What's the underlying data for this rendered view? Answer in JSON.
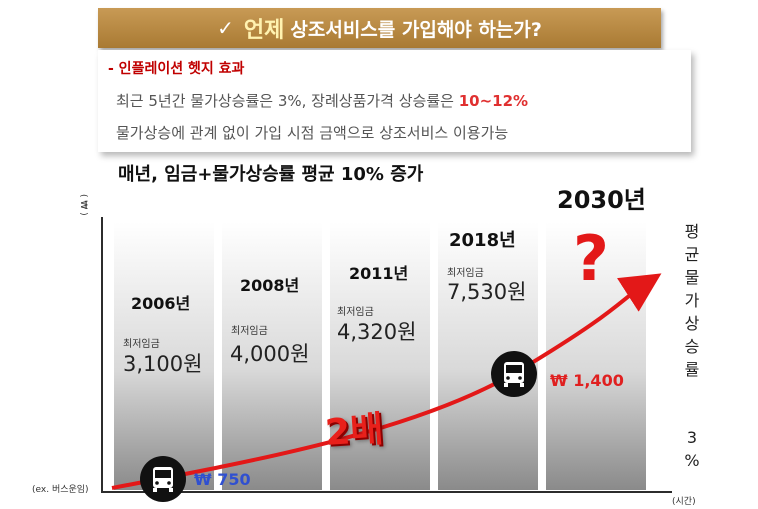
{
  "banner": {
    "check": "✓",
    "highlight": "언제",
    "text": "상조서비스를 가입해야 하는가?"
  },
  "info": {
    "heading": "- 인플레이션 헷지 효과",
    "line1_prefix": "최근 5년간 물가상승률은 3%, 장례상품가격 상승률은 ",
    "line1_highlight": "10~12%",
    "line2": "물가상승에 관계 없이 가입 시점 금액으로 상조서비스 이용가능"
  },
  "subtitle": "매년, 임금+물가상승률 평균 10% 증가",
  "axis": {
    "y_label": "( ₩ )",
    "x_label": "(시간)",
    "example_label": "(ex. 버스운임)"
  },
  "columns": [
    {
      "year": "2006년",
      "wage_label": "최저임금",
      "wage": "3,100원"
    },
    {
      "year": "2008년",
      "wage_label": "최저임금",
      "wage": "4,000원"
    },
    {
      "year": "2011년",
      "wage_label": "최저임금",
      "wage": "4,320원"
    },
    {
      "year": "2018년",
      "wage_label": "최저임금",
      "wage": "7,530원"
    }
  ],
  "future": {
    "year": "2030년",
    "mark": "?"
  },
  "bus_fares": {
    "start": "₩ 750",
    "end": "₩ 1,400"
  },
  "multiplier": "2배",
  "side_note": {
    "chars": [
      "평",
      "균",
      "물",
      "가",
      "상",
      "승",
      "률"
    ],
    "value_chars": [
      "3",
      "%"
    ]
  },
  "colors": {
    "banner": "#b5863f",
    "accent_red": "#e31818",
    "fare_blue": "#3050d0"
  }
}
